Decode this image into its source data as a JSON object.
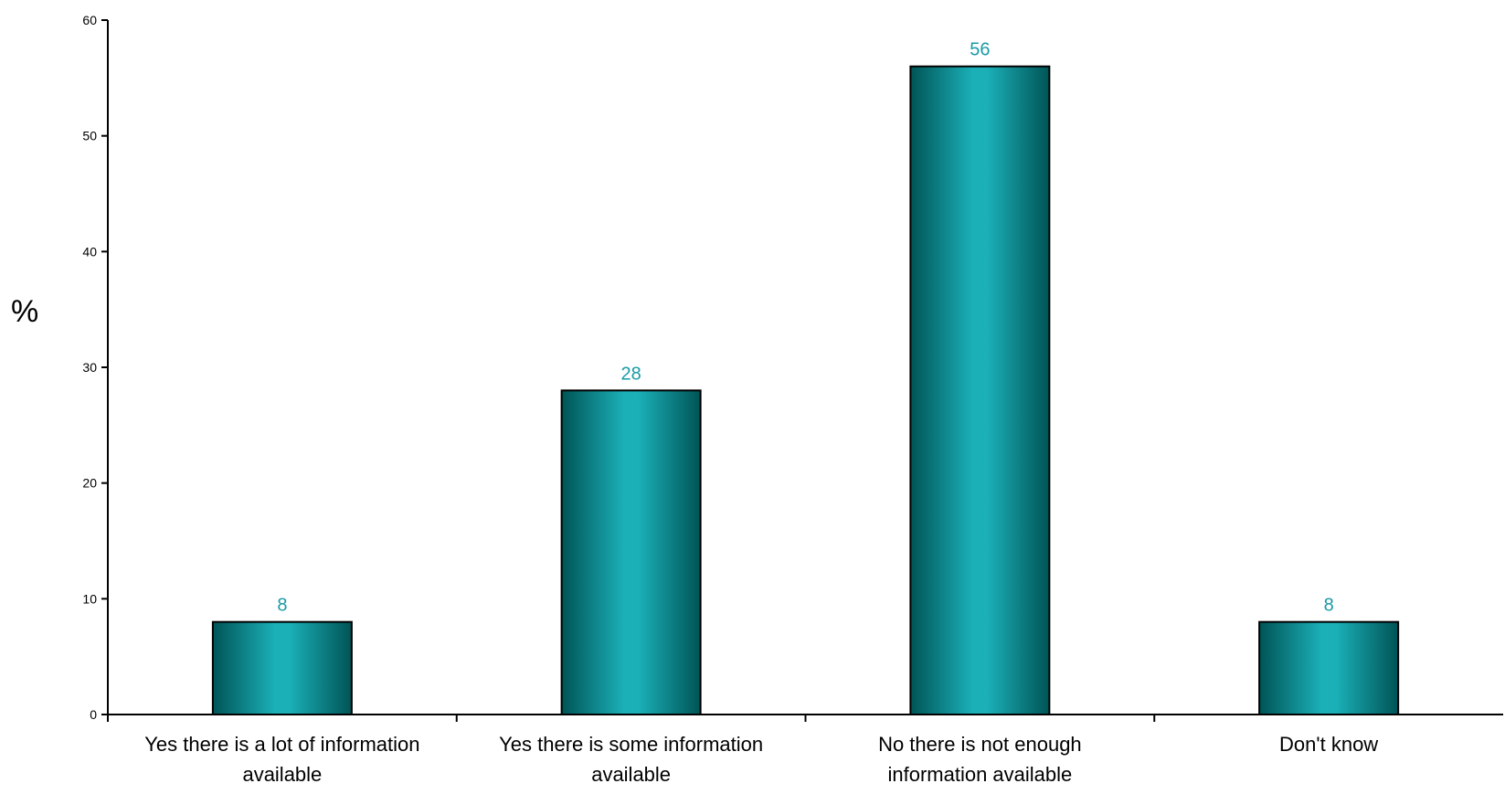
{
  "chart_data": {
    "type": "bar",
    "title": "",
    "xlabel": "",
    "ylabel": "%",
    "ylim": [
      0,
      60
    ],
    "yticks": [
      0,
      10,
      20,
      30,
      40,
      50,
      60
    ],
    "grid": false,
    "legend": "none",
    "categories": [
      [
        "Yes there is a lot of information",
        "available"
      ],
      [
        "Yes there is some information",
        "available"
      ],
      [
        "No there is not enough",
        "information available"
      ],
      [
        "Don't know"
      ]
    ],
    "values": [
      8,
      28,
      56,
      8
    ],
    "data_labels": [
      "8",
      "28",
      "56",
      "8"
    ],
    "colors": {
      "bar": "#008b8b",
      "bar_highlight": "#18b2bb",
      "bar_dark": "#005e60",
      "data_label": "#1a9aa6",
      "axis": "#000000"
    }
  }
}
